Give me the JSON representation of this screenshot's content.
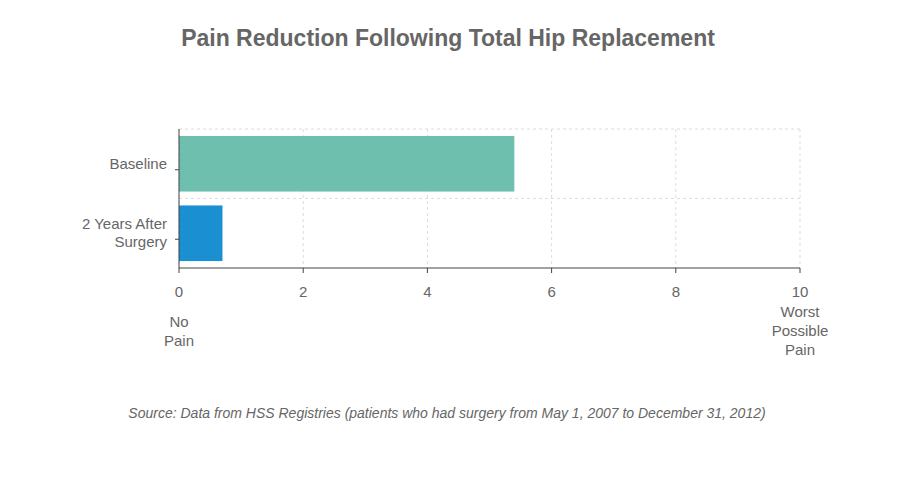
{
  "chart_data": {
    "type": "bar",
    "orientation": "horizontal",
    "title": "Pain Reduction Following Total Hip Replacement",
    "categories": [
      "Baseline",
      "2 Years After Surgery"
    ],
    "values": [
      5.4,
      0.7
    ],
    "colors": [
      "#6fbfae",
      "#1a8fd1"
    ],
    "xlim": [
      0,
      10
    ],
    "xticks": [
      0,
      2,
      4,
      6,
      8,
      10
    ],
    "grid": true,
    "annotations": [
      {
        "x": 0,
        "text": "No Pain"
      },
      {
        "x": 10,
        "text": "Worst Possible Pain"
      }
    ],
    "caption": "Source: Data from HSS Registries (patients who had surgery from May 1, 2007 to December 31, 2012)"
  }
}
